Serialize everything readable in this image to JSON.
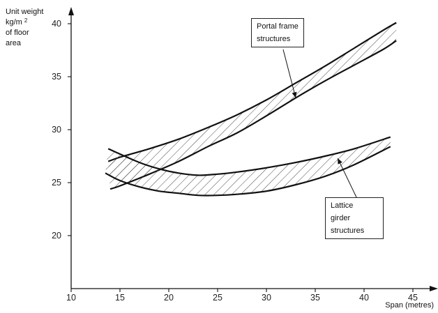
{
  "chart_data": {
    "type": "area",
    "title": "",
    "ylabel_lines": [
      "Unit weight",
      "kg/m",
      "of floor",
      "area"
    ],
    "ylabel_superscript": "2",
    "xlabel": "Span (metres)",
    "xlim": [
      10,
      47
    ],
    "ylim": [
      15,
      43
    ],
    "xticks": [
      10,
      15,
      20,
      25,
      30,
      35,
      40,
      45
    ],
    "yticks": [
      20,
      25,
      30,
      35,
      40
    ],
    "grid": false,
    "series": [
      {
        "name": "Portal frame structures",
        "fill": "hatched",
        "upper": {
          "x": [
            13.8,
            15,
            18,
            21,
            24,
            27,
            30,
            33,
            36,
            39,
            42,
            43.3
          ],
          "y": [
            27.0,
            27.4,
            28.2,
            29.1,
            30.2,
            31.4,
            32.8,
            34.4,
            36.0,
            37.7,
            39.4,
            40.1
          ]
        },
        "lower": {
          "x": [
            14,
            15,
            18,
            21,
            24,
            27,
            30,
            33,
            36,
            39,
            42,
            43.3
          ],
          "y": [
            24.4,
            24.7,
            25.8,
            27.0,
            28.4,
            29.7,
            31.3,
            33.0,
            34.6,
            36.1,
            37.6,
            38.4
          ]
        }
      },
      {
        "name": "Lattice girder structures",
        "fill": "hatched",
        "upper": {
          "x": [
            13.8,
            15,
            17,
            19,
            21,
            23,
            25,
            27,
            30,
            33,
            36,
            39,
            42.7
          ],
          "y": [
            28.2,
            27.7,
            26.9,
            26.3,
            25.9,
            25.7,
            25.8,
            26.0,
            26.4,
            26.9,
            27.5,
            28.2,
            29.3
          ]
        },
        "lower": {
          "x": [
            13.5,
            15,
            17,
            19,
            21,
            23,
            25,
            27,
            30,
            33,
            36,
            39,
            42.7
          ],
          "y": [
            25.9,
            25.2,
            24.6,
            24.2,
            24.0,
            23.8,
            23.8,
            23.9,
            24.2,
            24.8,
            25.6,
            26.7,
            28.4
          ]
        }
      }
    ],
    "annotations": [
      {
        "lines": [
          "Portal frame",
          "structures"
        ],
        "arrow_to": {
          "x": 33.0,
          "y": 33.0
        }
      },
      {
        "lines": [
          "Lattice",
          "girder",
          "structures"
        ],
        "arrow_to": {
          "x": 37.3,
          "y": 27.3
        }
      }
    ]
  }
}
